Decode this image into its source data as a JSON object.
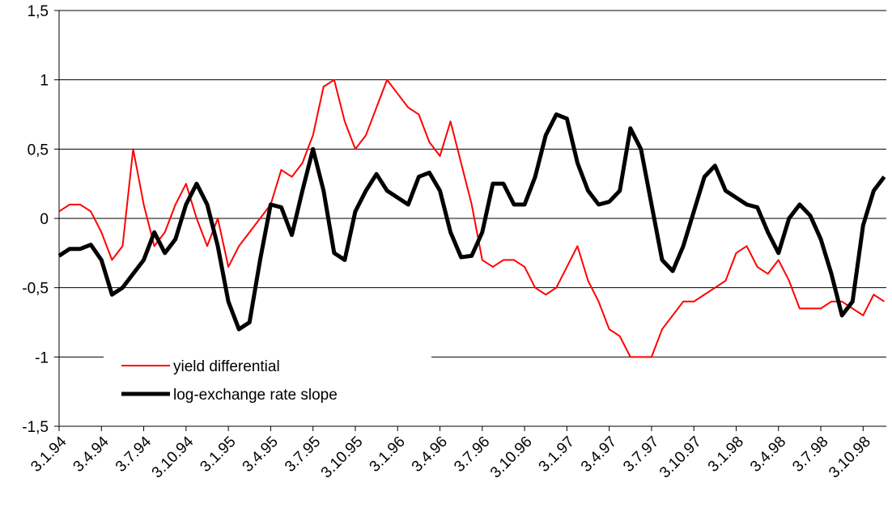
{
  "chart_data": {
    "type": "line",
    "categories": [
      "3.1.94",
      null,
      null,
      null,
      "3.4.94",
      null,
      null,
      null,
      "3.7.94",
      null,
      null,
      null,
      "3.10.94",
      null,
      null,
      null,
      "3.1.95",
      null,
      null,
      null,
      "3.4.95",
      null,
      null,
      null,
      "3.7.95",
      null,
      null,
      null,
      "3.10.95",
      null,
      null,
      null,
      "3.1.96",
      null,
      null,
      null,
      "3.4.96",
      null,
      null,
      null,
      "3.7.96",
      null,
      null,
      null,
      "3.10.96",
      null,
      null,
      null,
      "3.1.97",
      null,
      null,
      null,
      "3.4.97",
      null,
      null,
      null,
      "3.7.97",
      null,
      null,
      null,
      "3.10.97",
      null,
      null,
      null,
      "3.1.98",
      null,
      null,
      null,
      "3.4.98",
      null,
      null,
      null,
      "3.7.98",
      null,
      null,
      null,
      "3.10.98",
      null,
      null
    ],
    "series": [
      {
        "name": "yield differential",
        "color": "#ff0000",
        "values": [
          0.05,
          0.1,
          0.1,
          0.05,
          -0.1,
          -0.3,
          -0.2,
          0.5,
          0.1,
          -0.2,
          -0.1,
          0.1,
          0.25,
          0.0,
          -0.2,
          0.0,
          -0.35,
          -0.2,
          -0.1,
          0.0,
          0.1,
          0.35,
          0.3,
          0.4,
          0.6,
          0.95,
          1.0,
          0.7,
          0.5,
          0.6,
          0.8,
          1.0,
          0.9,
          0.8,
          0.75,
          0.55,
          0.45,
          0.7,
          0.4,
          0.1,
          -0.3,
          -0.35,
          -0.3,
          -0.3,
          -0.35,
          -0.5,
          -0.55,
          -0.5,
          -0.35,
          -0.2,
          -0.45,
          -0.6,
          -0.8,
          -0.85,
          -1.0,
          -1.0,
          -1.0,
          -0.8,
          -0.7,
          -0.6,
          -0.6,
          -0.55,
          -0.5,
          -0.45,
          -0.25,
          -0.2,
          -0.35,
          -0.4,
          -0.3,
          -0.45,
          -0.65,
          -0.65,
          -0.65,
          -0.6,
          -0.6,
          -0.65,
          -0.7,
          -0.55,
          -0.6
        ]
      },
      {
        "name": "log-exchange rate slope",
        "color": "#000000",
        "values": [
          -0.27,
          -0.22,
          -0.22,
          -0.19,
          -0.3,
          -0.55,
          -0.5,
          -0.4,
          -0.3,
          -0.1,
          -0.25,
          -0.15,
          0.1,
          0.25,
          0.1,
          -0.2,
          -0.6,
          -0.8,
          -0.75,
          -0.3,
          0.1,
          0.08,
          -0.12,
          0.2,
          0.5,
          0.2,
          -0.25,
          -0.3,
          0.05,
          0.2,
          0.32,
          0.2,
          0.15,
          0.1,
          0.3,
          0.33,
          0.2,
          -0.1,
          -0.28,
          -0.27,
          -0.1,
          0.25,
          0.25,
          0.1,
          0.1,
          0.3,
          0.6,
          0.75,
          0.72,
          0.4,
          0.2,
          0.1,
          0.12,
          0.2,
          0.65,
          0.5,
          0.1,
          -0.3,
          -0.38,
          -0.2,
          0.05,
          0.3,
          0.38,
          0.2,
          0.15,
          0.1,
          0.08,
          -0.1,
          -0.25,
          0.0,
          0.1,
          0.02,
          -0.15,
          -0.4,
          -0.7,
          -0.6,
          -0.05,
          0.2,
          0.3
        ]
      }
    ],
    "ylim": [
      -1.5,
      1.5
    ],
    "yticks": [
      {
        "value": -1.5,
        "label": "-1,5"
      },
      -1,
      {
        "value": -0.5,
        "label": "-0,5"
      },
      0,
      {
        "value": 0.5,
        "label": "0,5"
      },
      1,
      {
        "value": 1.5,
        "label": "1,5"
      }
    ],
    "grid": true,
    "legend": "lower-left"
  }
}
